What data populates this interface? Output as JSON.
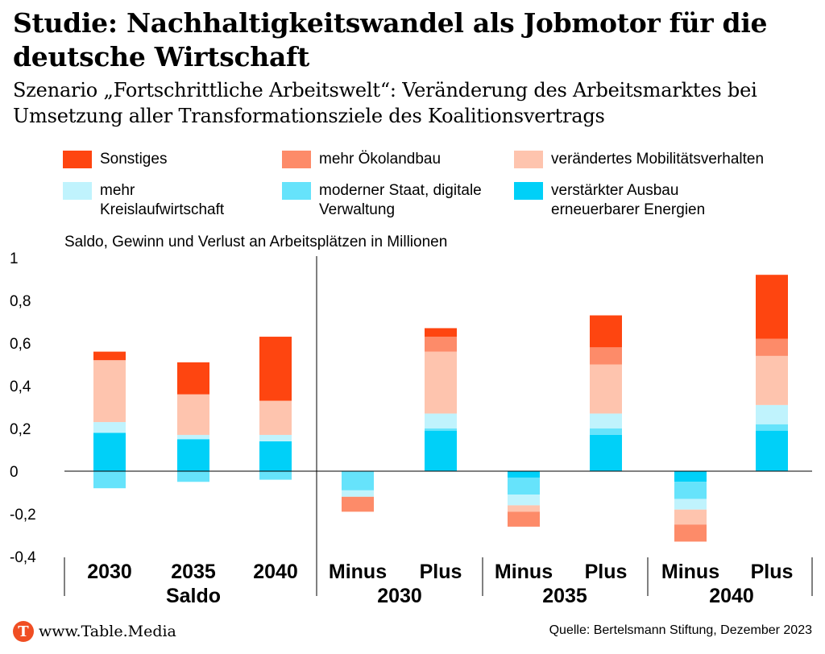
{
  "title": "Studie: Nachhaltigkeitswandel als Jobmotor für die deutsche Wirtschaft",
  "subtitle": "Szenario „Fortschrittliche Arbeitswelt“: Veränderung des Arbeitsmarktes bei Umsetzung aller Transformationsziele des Koalitionsvertrags",
  "footer": {
    "site": "www.Table.Media",
    "logo_letter": "T",
    "source": "Quelle: Bertelsmann Stiftung, Dezember 2023"
  },
  "chart_data": {
    "type": "bar",
    "stacked": true,
    "ylabel": "Saldo, Gewinn und Verlust an Arbeitsplätzen in Millionen",
    "ylim": [
      -0.4,
      1.0
    ],
    "yticks": [
      "-0,4",
      "-0,2",
      "0",
      "0,2",
      "0,4",
      "0,6",
      "0,8",
      "1"
    ],
    "ytick_values": [
      -0.4,
      -0.2,
      0,
      0.2,
      0.4,
      0.6,
      0.8,
      1.0
    ],
    "categories": [
      "2030",
      "2035",
      "2040",
      "Minus",
      "Plus",
      "Minus",
      "Plus",
      "Minus",
      "Plus"
    ],
    "groups": [
      {
        "label": "Saldo",
        "categories": [
          0,
          1,
          2
        ]
      },
      {
        "label": "2030",
        "categories": [
          3,
          4
        ]
      },
      {
        "label": "2035",
        "categories": [
          5,
          6
        ]
      },
      {
        "label": "2040",
        "categories": [
          7,
          8
        ]
      }
    ],
    "series": [
      {
        "name": "verstärkter Ausbau erneuerbarer Energien",
        "color": "#00d0f8",
        "values": [
          0.18,
          0.15,
          0.14,
          0.0,
          0.19,
          -0.03,
          0.17,
          -0.05,
          0.19
        ],
        "negatives": [
          0.0,
          0.0,
          0.0,
          0.0,
          0.0,
          0.0,
          0.0,
          0.0,
          0.0
        ]
      },
      {
        "name": "moderner Staat, digitale Verwaltung",
        "color": "#66e3fb",
        "values": [
          -0.08,
          -0.05,
          -0.04,
          -0.09,
          0.01,
          -0.08,
          0.03,
          -0.08,
          0.03
        ]
      },
      {
        "name": "mehr Kreislaufwirtschaft",
        "color": "#c0f3fd",
        "values": [
          0.05,
          0.02,
          0.03,
          -0.03,
          0.07,
          -0.05,
          0.07,
          -0.05,
          0.09
        ]
      },
      {
        "name": "verändertes Mobilitätsverhalten",
        "color": "#fec4ae",
        "values": [
          0.29,
          0.19,
          0.16,
          0.0,
          0.29,
          -0.03,
          0.23,
          -0.07,
          0.23
        ]
      },
      {
        "name": "mehr Ökolandbau",
        "color": "#fd8b69",
        "values": [
          0.0,
          0.0,
          0.0,
          -0.07,
          0.07,
          -0.07,
          0.08,
          -0.08,
          0.08
        ]
      },
      {
        "name": "Sonstiges",
        "color": "#fe4510",
        "values": [
          0.04,
          0.15,
          0.3,
          0.0,
          0.04,
          0.0,
          0.15,
          0.0,
          0.3
        ]
      }
    ]
  },
  "legend": [
    {
      "name": "Sonstiges",
      "color": "#fe4510"
    },
    {
      "name": "mehr Ökolandbau",
      "color": "#fd8b69"
    },
    {
      "name": "verändertes Mobilitätsverhalten",
      "color": "#fec4ae"
    },
    {
      "name": "mehr Kreislaufwirtschaft",
      "color": "#c0f3fd"
    },
    {
      "name": "moderner Staat, digitale Verwaltung",
      "color": "#66e3fb"
    },
    {
      "name": "verstärkter Ausbau erneuerbarer Energien",
      "color": "#00d0f8"
    }
  ]
}
